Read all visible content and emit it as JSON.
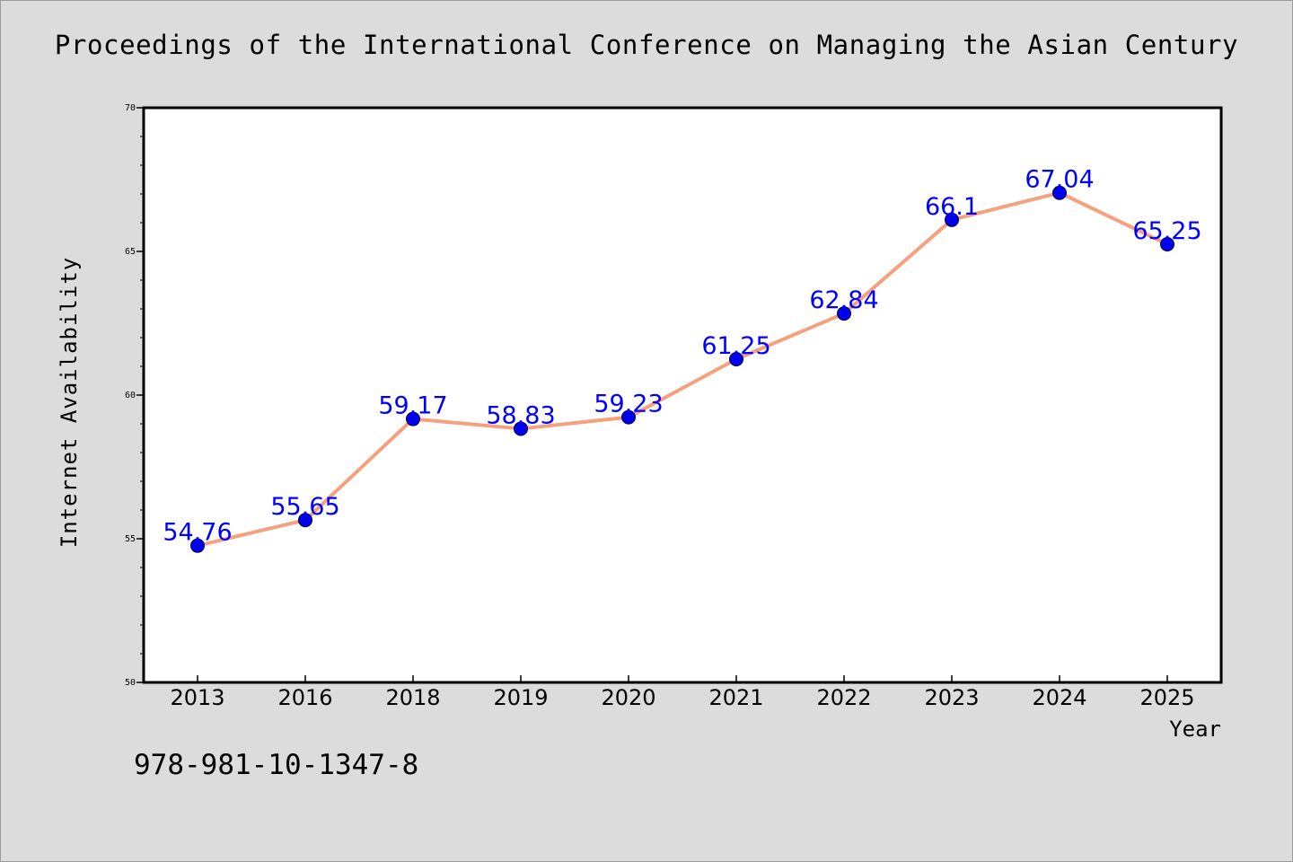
{
  "title": "Proceedings of the International Conference on Managing the Asian Century",
  "footer": {
    "isbn": "978-981-10-1347-8"
  },
  "colors": {
    "background": "#dcdcdc",
    "line": "#f5a07e",
    "marker": "#0000ee",
    "data_label": "#0000ff",
    "axis": "#000000"
  },
  "chart_data": {
    "type": "line",
    "title": "Proceedings of the International Conference on Managing the Asian Century",
    "xlabel": "Year",
    "ylabel": "Internet Availability",
    "categories": [
      "2013",
      "2016",
      "2018",
      "2019",
      "2020",
      "2021",
      "2022",
      "2023",
      "2024",
      "2025"
    ],
    "series": [
      {
        "values": [
          54.76,
          55.65,
          59.17,
          58.83,
          59.23,
          61.25,
          62.84,
          66.1,
          67.04,
          65.25
        ],
        "labels": [
          "54.76",
          "55.65",
          "59.17",
          "58.83",
          "59.23",
          "61.25",
          "62.84",
          "66.1",
          "67.04",
          "65.25"
        ]
      }
    ],
    "ylim": [
      50,
      70
    ],
    "yticks": [
      "50",
      "55",
      "60",
      "65",
      "70"
    ],
    "y_minor_step": 1,
    "grid": false,
    "legend": "none",
    "markers": "circle",
    "data_labels": true
  }
}
